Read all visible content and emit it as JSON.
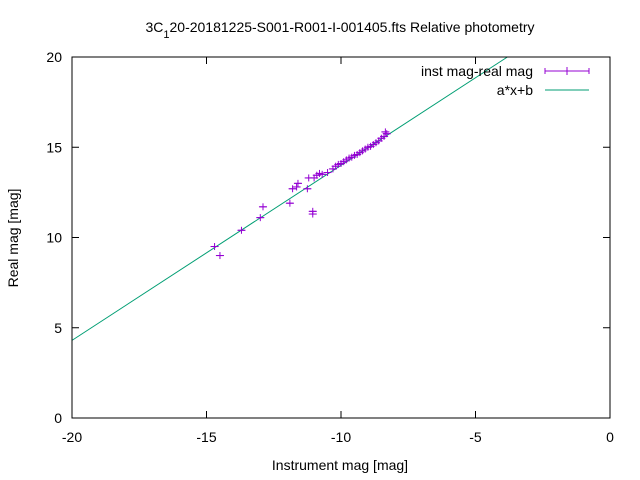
{
  "chart_data": {
    "type": "scatter",
    "title": "3C 120-20181225-S001-R001-I-001405.fts Relative photometry",
    "title_parts": {
      "prefix": "3C",
      "subscript": "1",
      "suffix": "20-20181225-S001-R001-I-001405.fts Relative photometry"
    },
    "xlabel": "Instrument mag [mag]",
    "ylabel": "Real mag [mag]",
    "xlim": [
      -20,
      0
    ],
    "ylim": [
      0,
      20
    ],
    "x_ticks": [
      -20,
      -15,
      -10,
      -5,
      0
    ],
    "y_ticks": [
      0,
      5,
      10,
      15,
      20
    ],
    "x_tick_labels": [
      "-20",
      "-15",
      "-10",
      "-5",
      "0"
    ],
    "y_tick_labels": [
      "0",
      "5",
      "10",
      "15",
      "20"
    ],
    "grid": false,
    "legend_position": "top-right",
    "series": [
      {
        "name": "inst mag-real mag",
        "style": "points-with-xerrorbars",
        "color": "#9400d3",
        "points": [
          [
            -14.7,
            9.5
          ],
          [
            -14.5,
            9.0
          ],
          [
            -13.7,
            10.4
          ],
          [
            -13.0,
            11.1
          ],
          [
            -12.9,
            11.7
          ],
          [
            -11.9,
            11.9
          ],
          [
            -11.8,
            12.7
          ],
          [
            -11.65,
            12.8
          ],
          [
            -11.6,
            13.0
          ],
          [
            -11.25,
            12.7
          ],
          [
            -11.2,
            13.3
          ],
          [
            -11.05,
            11.3
          ],
          [
            -11.05,
            11.45
          ],
          [
            -11.0,
            13.3
          ],
          [
            -10.9,
            13.45
          ],
          [
            -10.8,
            13.55
          ],
          [
            -10.7,
            13.5
          ],
          [
            -10.5,
            13.6
          ],
          [
            -10.3,
            13.8
          ],
          [
            -10.2,
            13.95
          ],
          [
            -10.1,
            14.05
          ],
          [
            -10.0,
            14.1
          ],
          [
            -9.9,
            14.2
          ],
          [
            -9.8,
            14.3
          ],
          [
            -9.7,
            14.4
          ],
          [
            -9.6,
            14.45
          ],
          [
            -9.5,
            14.55
          ],
          [
            -9.4,
            14.6
          ],
          [
            -9.3,
            14.7
          ],
          [
            -9.2,
            14.8
          ],
          [
            -9.1,
            14.9
          ],
          [
            -9.0,
            15.0
          ],
          [
            -8.9,
            15.05
          ],
          [
            -8.8,
            15.15
          ],
          [
            -8.7,
            15.25
          ],
          [
            -8.6,
            15.35
          ],
          [
            -8.5,
            15.5
          ],
          [
            -8.4,
            15.6
          ],
          [
            -8.3,
            15.75
          ],
          [
            -8.35,
            15.85
          ]
        ],
        "x_error": 0.15
      },
      {
        "name": "a*x+b",
        "style": "line",
        "color": "#009e73",
        "slope": 0.97,
        "intercept": 23.7
      }
    ]
  }
}
